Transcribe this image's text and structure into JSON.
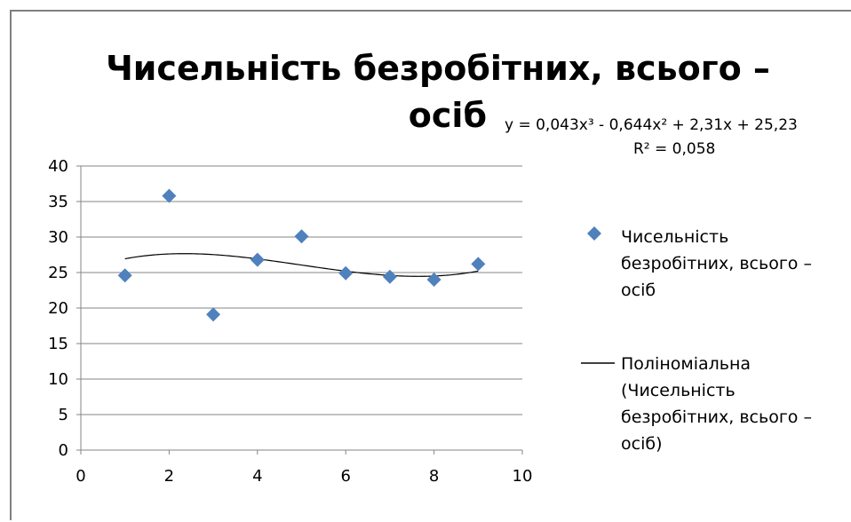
{
  "chart_data": {
    "type": "scatter",
    "title_lines": [
      "Чисельність безробітних, всього –",
      "осіб"
    ],
    "xlabel": "",
    "ylabel": "",
    "xlim": [
      0,
      10
    ],
    "ylim": [
      0,
      40
    ],
    "x_ticks": [
      "0",
      "2",
      "4",
      "6",
      "8",
      "10"
    ],
    "y_ticks": [
      "0",
      "5",
      "10",
      "15",
      "20",
      "25",
      "30",
      "35",
      "40"
    ],
    "grid": "horizontal",
    "legend_position": "right",
    "series": [
      {
        "name": "Чисельність безробітних, всього – осіб",
        "legend_lines": [
          "Чисельність",
          "безробітних, всього –",
          "осіб"
        ],
        "marker": "diamond",
        "color": "#4f81bd",
        "x": [
          1,
          2,
          3,
          4,
          5,
          6,
          7,
          8,
          9
        ],
        "y": [
          24.6,
          35.8,
          19.1,
          26.8,
          30.1,
          24.9,
          24.4,
          24.0,
          26.2
        ]
      }
    ],
    "trendline": {
      "name": "Поліноміальна (Чисельність безробітних, всього – осіб)",
      "legend_lines": [
        "Поліноміальна",
        "(Чисельність",
        "безробітних, всього –",
        "осіб)"
      ],
      "type": "polynomial",
      "order": 3,
      "coefficients": [
        0.043,
        -0.644,
        2.31,
        25.23
      ],
      "x_range": [
        1,
        9
      ],
      "color": "#000000",
      "equation": "y = 0,043x³ - 0,644x² + 2,31x + 25,23",
      "r_squared": "R² = 0,058"
    }
  }
}
